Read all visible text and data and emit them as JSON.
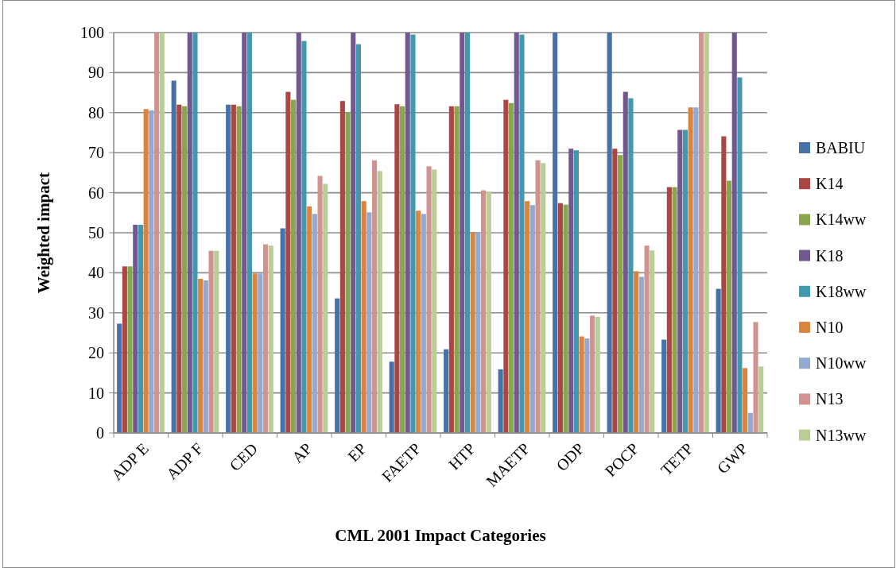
{
  "chart_data": {
    "type": "bar",
    "xlabel": "CML 2001  Impact Categories",
    "ylabel": "Weighted impact",
    "categories": [
      "ADP E",
      "ADP F",
      "CED",
      "AP",
      "EP",
      "FAETP",
      "HTP",
      "MAETP",
      "ODP",
      "POCP",
      "TETP",
      "GWP"
    ],
    "series": [
      {
        "name": "BABIU",
        "color": "#4672a8",
        "values": [
          27.3,
          88,
          82,
          51.1,
          33.6,
          17.8,
          20.9,
          15.9,
          100,
          100,
          23.3,
          36
        ]
      },
      {
        "name": "K14",
        "color": "#aa4643",
        "values": [
          41.6,
          82,
          82,
          85.2,
          82.9,
          82.1,
          81.6,
          83.2,
          57.4,
          71,
          61.4,
          74.1
        ]
      },
      {
        "name": "K14ww",
        "color": "#89a54e",
        "values": [
          41.6,
          81.6,
          81.6,
          83.2,
          80.1,
          81.6,
          81.6,
          82.4,
          57,
          69.4,
          61.4,
          63
        ]
      },
      {
        "name": "K18",
        "color": "#71588f",
        "values": [
          52,
          100,
          100,
          100,
          100,
          100,
          100,
          100,
          71,
          85.2,
          75.7,
          100
        ]
      },
      {
        "name": "K18ww",
        "color": "#4198af",
        "values": [
          52,
          100,
          100,
          97.9,
          97.1,
          99.5,
          100,
          99.5,
          70.6,
          83.6,
          75.7,
          88.8
        ]
      },
      {
        "name": "N10",
        "color": "#db843d",
        "values": [
          80.9,
          38.5,
          39.8,
          56.6,
          57.9,
          55.5,
          50.2,
          57.9,
          24.1,
          40.4,
          81.3,
          16.2
        ]
      },
      {
        "name": "N10ww",
        "color": "#93a9cf",
        "values": [
          80.6,
          38.1,
          39.8,
          54.7,
          55.1,
          54.7,
          50.1,
          56.9,
          23.6,
          39,
          81.3,
          5
        ]
      },
      {
        "name": "N13",
        "color": "#d19392",
        "values": [
          100,
          45.5,
          47.1,
          64.2,
          68.1,
          66.6,
          60.6,
          68.1,
          29.3,
          46.8,
          100,
          27.7
        ]
      },
      {
        "name": "N13ww",
        "color": "#b9cd96",
        "values": [
          100,
          45.5,
          46.8,
          62.2,
          65.4,
          65.8,
          60.3,
          67.4,
          29,
          45.6,
          100,
          16.6
        ]
      }
    ],
    "ylim": [
      0,
      100
    ],
    "yticks": [
      0,
      10,
      20,
      30,
      40,
      50,
      60,
      70,
      80,
      90,
      100
    ],
    "grid": "y",
    "legend": "right"
  }
}
